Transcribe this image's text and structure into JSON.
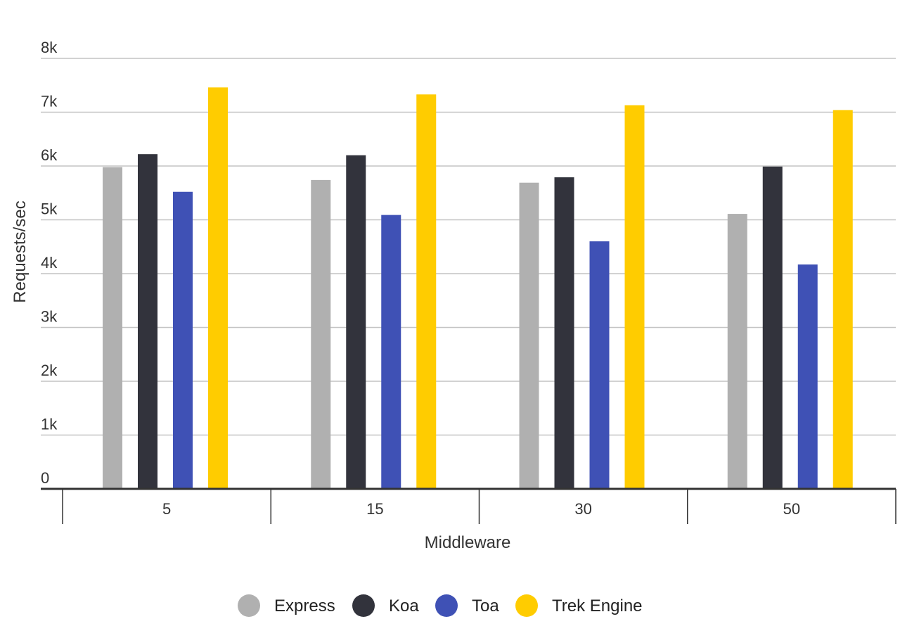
{
  "chart_data": {
    "type": "bar",
    "title": "",
    "xlabel": "Middleware",
    "ylabel": "Requests/sec",
    "ylim": [
      0,
      8000
    ],
    "yticks": [
      0,
      1000,
      2000,
      3000,
      4000,
      5000,
      6000,
      7000,
      8000
    ],
    "ytick_labels": [
      "0",
      "1k",
      "2k",
      "3k",
      "4k",
      "5k",
      "6k",
      "7k",
      "8k"
    ],
    "categories": [
      "5",
      "15",
      "30",
      "50"
    ],
    "grid": true,
    "legend_position": "bottom",
    "series": [
      {
        "name": "Express",
        "color": "#b0b0b0",
        "values": [
          5980,
          5740,
          5690,
          5110
        ]
      },
      {
        "name": "Koa",
        "color": "#32333c",
        "values": [
          6220,
          6200,
          5790,
          5990
        ]
      },
      {
        "name": "Toa",
        "color": "#3f51b5",
        "values": [
          5520,
          5090,
          4600,
          4170
        ]
      },
      {
        "name": "Trek Engine",
        "color": "#ffcc00",
        "values": [
          7460,
          7330,
          7130,
          7040
        ]
      }
    ]
  }
}
